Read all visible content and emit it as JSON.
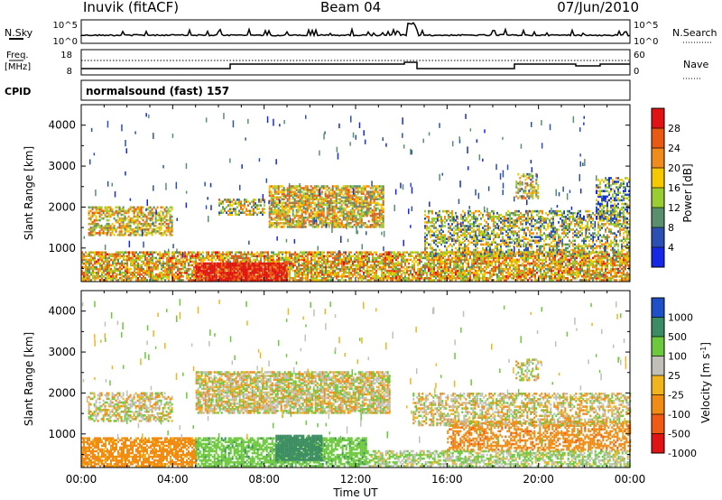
{
  "header": {
    "station": "Inuvik (fitACF)",
    "beam": "Beam 04",
    "date": "07/Jun/2010"
  },
  "strips": {
    "nsky": {
      "label": "N.Sky",
      "left_top": "10^5",
      "left_bottom": "10^0",
      "right_top": "10^5",
      "right_bottom": "10^0",
      "right_label": "N.Search"
    },
    "freq": {
      "label_line1": "Freq.",
      "label_line2": "[MHz]",
      "left_top": "18",
      "left_bottom": "8",
      "right_top": "60",
      "right_bottom": "0",
      "right_label": "Nave"
    },
    "cpid": {
      "label": "CPID",
      "text": "normalsound (fast) 157"
    }
  },
  "chart_data": [
    {
      "type": "heatmap",
      "name": "power",
      "ylabel": "Slant Range [km]",
      "xlabel": "",
      "x_ticks": [
        "00:00",
        "04:00",
        "08:00",
        "12:00",
        "16:00",
        "20:00",
        "00:00"
      ],
      "y_ticks": [
        1000,
        2000,
        3000,
        4000
      ],
      "ylim": [
        180,
        4500
      ],
      "xlim_hours": [
        0,
        24
      ],
      "colorbar": {
        "label": "Power [dB]",
        "ticks": [
          "4",
          "8",
          "12",
          "16",
          "20",
          "24",
          "28"
        ],
        "colors": [
          "#1428e6",
          "#2b50b4",
          "#5a8f6e",
          "#9acd32",
          "#f5c800",
          "#f08c1e",
          "#e85a14",
          "#e01414"
        ]
      },
      "bands": [
        {
          "t0": 0.0,
          "t1": 24.0,
          "r0": 200,
          "r1": 900,
          "level": 0.6,
          "density": 0.75
        },
        {
          "t0": 5.0,
          "t1": 9.0,
          "r0": 200,
          "r1": 650,
          "level": 1.0,
          "density": 0.9
        },
        {
          "t0": 0.3,
          "t1": 4.0,
          "r0": 1300,
          "r1": 2000,
          "level": 0.55,
          "density": 0.6
        },
        {
          "t0": 6.0,
          "t1": 8.0,
          "r0": 1800,
          "r1": 2200,
          "level": 0.5,
          "density": 0.6
        },
        {
          "t0": 8.2,
          "t1": 13.2,
          "r0": 1500,
          "r1": 2500,
          "level": 0.55,
          "density": 0.75
        },
        {
          "t0": 15.0,
          "t1": 24.0,
          "r0": 800,
          "r1": 1900,
          "level": 0.45,
          "density": 0.5
        },
        {
          "t0": 19.0,
          "t1": 20.0,
          "r0": 2200,
          "r1": 2800,
          "level": 0.5,
          "density": 0.5
        },
        {
          "t0": 22.5,
          "t1": 24.0,
          "r0": 1700,
          "r1": 2700,
          "level": 0.35,
          "density": 0.5
        }
      ]
    },
    {
      "type": "heatmap",
      "name": "velocity",
      "ylabel": "Slant Range [km]",
      "xlabel": "Time UT",
      "x_ticks": [
        "00:00",
        "04:00",
        "08:00",
        "12:00",
        "16:00",
        "20:00",
        "00:00"
      ],
      "y_ticks": [
        1000,
        2000,
        3000,
        4000
      ],
      "ylim": [
        180,
        4500
      ],
      "xlim_hours": [
        0,
        24
      ],
      "colorbar": {
        "label": "Velocity [m s-1]",
        "ticks": [
          "1000",
          "500",
          "100",
          "25",
          "-25",
          "-100",
          "-500",
          "-1000"
        ],
        "colors": [
          "#1e50c8",
          "#3c8c64",
          "#6cc83c",
          "#c0c0b8",
          "#f0b41e",
          "#f08c14",
          "#f05a14",
          "#e01414"
        ]
      },
      "bands": [
        {
          "t0": 0.0,
          "t1": 5.0,
          "r0": 200,
          "r1": 900,
          "value": -150,
          "density": 0.75
        },
        {
          "t0": 5.0,
          "t1": 12.5,
          "r0": 200,
          "r1": 900,
          "value": 200,
          "density": 0.7
        },
        {
          "t0": 8.5,
          "t1": 10.5,
          "r0": 350,
          "r1": 950,
          "value": 450,
          "density": 0.9
        },
        {
          "t0": 12.5,
          "t1": 24.0,
          "r0": 200,
          "r1": 600,
          "value": 60,
          "density": 0.6
        },
        {
          "t0": 16.0,
          "t1": 24.0,
          "r0": 600,
          "r1": 1300,
          "value": -200,
          "density": 0.55
        },
        {
          "t0": 0.3,
          "t1": 4.0,
          "r0": 1300,
          "r1": 2000,
          "value": 0,
          "density": 0.55
        },
        {
          "t0": 5.0,
          "t1": 13.5,
          "r0": 1500,
          "r1": 2500,
          "value": 0,
          "density": 0.75
        },
        {
          "t0": 14.5,
          "t1": 24.0,
          "r0": 1200,
          "r1": 2000,
          "value": -10,
          "density": 0.5
        },
        {
          "t0": 19.0,
          "t1": 20.0,
          "r0": 2300,
          "r1": 2800,
          "value": 0,
          "density": 0.45
        }
      ]
    }
  ]
}
